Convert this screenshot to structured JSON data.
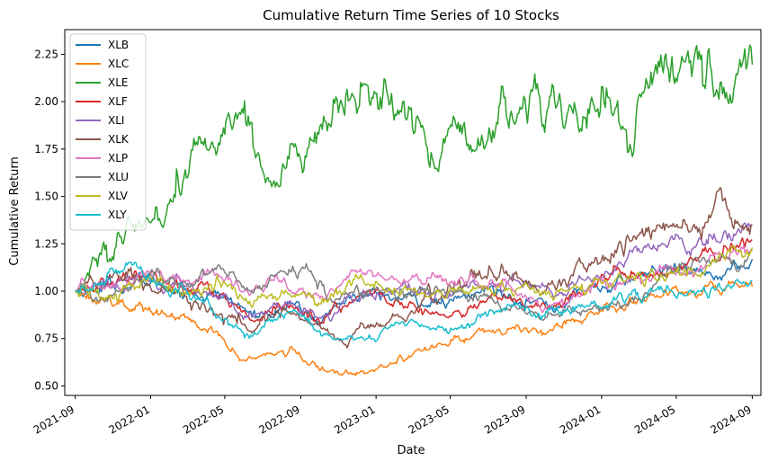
{
  "chart_data": {
    "type": "line",
    "title": "Cumulative Return Time Series of 10 Stocks",
    "xlabel": "Date",
    "ylabel": "Cumulative Return",
    "x_ticks": [
      "2021-09",
      "2022-01",
      "2022-05",
      "2022-09",
      "2023-01",
      "2023-05",
      "2023-09",
      "2024-01",
      "2024-05",
      "2024-09"
    ],
    "y_ticks": [
      "0.50",
      "0.75",
      "1.00",
      "1.25",
      "1.50",
      "1.75",
      "2.00",
      "2.25"
    ],
    "xlim": [
      "2021-08-15",
      "2024-09-15"
    ],
    "ylim": [
      0.45,
      2.38
    ],
    "grid": false,
    "legend_position": "upper-left",
    "series": [
      {
        "name": "XLB",
        "color": "#1f77b4",
        "x": [
          "2021-09-01",
          "2021-11-01",
          "2022-01-01",
          "2022-03-01",
          "2022-05-01",
          "2022-06-15",
          "2022-08-15",
          "2022-10-01",
          "2022-11-15",
          "2023-01-01",
          "2023-03-01",
          "2023-05-01",
          "2023-07-01",
          "2023-09-01",
          "2023-10-15",
          "2023-12-01",
          "2024-02-01",
          "2024-04-01",
          "2024-06-01",
          "2024-08-01",
          "2024-09-01"
        ],
        "values": [
          1.0,
          1.03,
          1.05,
          1.0,
          0.97,
          0.87,
          0.93,
          0.84,
          0.97,
          0.98,
          0.95,
          0.93,
          1.01,
          0.97,
          0.91,
          1.0,
          1.04,
          1.12,
          1.08,
          1.1,
          1.17
        ]
      },
      {
        "name": "XLC",
        "color": "#ff7f0e",
        "x": [
          "2021-09-01",
          "2021-11-01",
          "2022-01-01",
          "2022-03-01",
          "2022-04-15",
          "2022-06-01",
          "2022-08-15",
          "2022-10-01",
          "2022-11-01",
          "2023-01-01",
          "2023-03-01",
          "2023-05-01",
          "2023-07-01",
          "2023-09-01",
          "2023-11-01",
          "2024-01-01",
          "2024-03-01",
          "2024-05-01",
          "2024-07-01",
          "2024-09-01"
        ],
        "values": [
          1.0,
          0.95,
          0.9,
          0.84,
          0.77,
          0.64,
          0.68,
          0.59,
          0.56,
          0.6,
          0.67,
          0.73,
          0.8,
          0.79,
          0.83,
          0.9,
          0.97,
          0.98,
          1.04,
          1.03
        ]
      },
      {
        "name": "XLE",
        "color": "#2ca02c",
        "x": [
          "2021-09-01",
          "2021-10-15",
          "2021-12-01",
          "2022-01-01",
          "2022-02-15",
          "2022-03-15",
          "2022-04-15",
          "2022-06-01",
          "2022-07-15",
          "2022-08-15",
          "2022-10-01",
          "2022-11-15",
          "2023-01-01",
          "2023-02-01",
          "2023-03-15",
          "2023-05-01",
          "2023-07-01",
          "2023-09-15",
          "2023-11-01",
          "2024-01-01",
          "2024-02-15",
          "2024-04-01",
          "2024-04-15",
          "2024-06-01",
          "2024-08-01",
          "2024-09-01"
        ],
        "values": [
          1.0,
          1.2,
          1.24,
          1.4,
          1.5,
          1.7,
          1.8,
          2.0,
          1.55,
          1.7,
          1.8,
          1.95,
          2.05,
          1.95,
          1.85,
          1.75,
          1.8,
          2.05,
          1.95,
          1.95,
          1.9,
          2.1,
          2.28,
          2.15,
          2.1,
          2.15
        ]
      },
      {
        "name": "XLF",
        "color": "#d62728",
        "x": [
          "2021-09-01",
          "2021-11-01",
          "2022-01-01",
          "2022-03-01",
          "2022-05-01",
          "2022-06-15",
          "2022-08-15",
          "2022-10-01",
          "2022-12-01",
          "2023-01-15",
          "2023-03-15",
          "2023-05-01",
          "2023-07-01",
          "2023-09-01",
          "2023-10-15",
          "2024-01-01",
          "2024-03-01",
          "2024-05-01",
          "2024-07-01",
          "2024-09-01"
        ],
        "values": [
          1.0,
          1.05,
          1.07,
          1.02,
          0.95,
          0.84,
          0.92,
          0.87,
          0.95,
          0.97,
          0.9,
          0.86,
          0.94,
          0.95,
          0.92,
          1.05,
          1.1,
          1.12,
          1.18,
          1.26
        ]
      },
      {
        "name": "XLI",
        "color": "#9467bd",
        "x": [
          "2021-09-01",
          "2021-11-01",
          "2022-01-01",
          "2022-03-01",
          "2022-05-01",
          "2022-06-15",
          "2022-08-15",
          "2022-10-01",
          "2022-12-01",
          "2023-02-01",
          "2023-04-01",
          "2023-06-01",
          "2023-08-01",
          "2023-10-15",
          "2024-01-01",
          "2024-03-01",
          "2024-05-01",
          "2024-07-01",
          "2024-09-01"
        ],
        "values": [
          1.0,
          1.05,
          1.06,
          1.02,
          0.96,
          0.86,
          0.94,
          0.85,
          0.98,
          1.0,
          0.97,
          1.02,
          1.07,
          0.98,
          1.1,
          1.2,
          1.25,
          1.27,
          1.32
        ]
      },
      {
        "name": "XLK",
        "color": "#8c564b",
        "x": [
          "2021-09-01",
          "2021-12-01",
          "2022-01-15",
          "2022-03-15",
          "2022-05-15",
          "2022-06-15",
          "2022-08-15",
          "2022-10-15",
          "2022-12-15",
          "2023-02-01",
          "2023-04-01",
          "2023-06-01",
          "2023-07-15",
          "2023-09-01",
          "2023-10-15",
          "2023-12-01",
          "2024-02-01",
          "2024-04-01",
          "2024-05-15",
          "2024-07-10",
          "2024-08-05",
          "2024-09-01"
        ],
        "values": [
          1.0,
          1.08,
          1.04,
          0.97,
          0.86,
          0.8,
          0.9,
          0.76,
          0.78,
          0.85,
          0.97,
          1.05,
          1.12,
          1.05,
          1.0,
          1.1,
          1.25,
          1.35,
          1.3,
          1.52,
          1.35,
          1.4
        ]
      },
      {
        "name": "XLP",
        "color": "#e377c2",
        "x": [
          "2021-09-01",
          "2021-11-01",
          "2022-01-01",
          "2022-03-01",
          "2022-04-15",
          "2022-06-15",
          "2022-08-15",
          "2022-10-01",
          "2022-12-01",
          "2023-02-01",
          "2023-04-01",
          "2023-06-01",
          "2023-08-01",
          "2023-10-15",
          "2023-12-01",
          "2024-02-01",
          "2024-04-01",
          "2024-06-01",
          "2024-08-01",
          "2024-09-01"
        ],
        "values": [
          1.0,
          1.02,
          1.08,
          1.04,
          1.1,
          1.03,
          1.08,
          0.95,
          1.08,
          1.04,
          1.08,
          1.05,
          1.02,
          0.92,
          1.0,
          1.05,
          1.1,
          1.12,
          1.18,
          1.23
        ]
      },
      {
        "name": "XLU",
        "color": "#7f7f7f",
        "x": [
          "2021-09-01",
          "2021-11-01",
          "2022-01-01",
          "2022-03-01",
          "2022-04-15",
          "2022-06-15",
          "2022-08-15",
          "2022-09-10",
          "2022-10-15",
          "2022-12-01",
          "2023-02-01",
          "2023-04-01",
          "2023-06-01",
          "2023-08-01",
          "2023-10-01",
          "2023-12-01",
          "2024-02-01",
          "2024-04-01",
          "2024-06-01",
          "2024-08-01",
          "2024-09-01"
        ],
        "values": [
          1.0,
          0.98,
          1.06,
          1.02,
          1.13,
          1.0,
          1.12,
          1.15,
          0.92,
          1.02,
          0.98,
          1.0,
          0.97,
          0.92,
          0.85,
          0.92,
          0.93,
          1.05,
          1.15,
          1.15,
          1.2
        ]
      },
      {
        "name": "XLV",
        "color": "#bcbd22",
        "x": [
          "2021-09-01",
          "2021-11-01",
          "2022-01-01",
          "2022-03-01",
          "2022-05-01",
          "2022-06-15",
          "2022-08-15",
          "2022-10-01",
          "2022-12-01",
          "2023-02-01",
          "2023-04-01",
          "2023-06-01",
          "2023-08-01",
          "2023-10-15",
          "2023-12-01",
          "2024-02-01",
          "2024-04-01",
          "2024-06-01",
          "2024-08-01",
          "2024-09-01"
        ],
        "values": [
          1.0,
          0.96,
          1.03,
          0.99,
          1.03,
          0.96,
          1.0,
          0.95,
          1.06,
          1.02,
          1.0,
          0.99,
          1.04,
          0.98,
          1.03,
          1.08,
          1.1,
          1.1,
          1.18,
          1.21
        ]
      },
      {
        "name": "XLY",
        "color": "#17becf",
        "x": [
          "2021-09-01",
          "2021-11-01",
          "2021-12-01",
          "2022-01-15",
          "2022-03-01",
          "2022-04-15",
          "2022-05-15",
          "2022-06-15",
          "2022-08-15",
          "2022-10-01",
          "2022-11-15",
          "2023-01-01",
          "2023-02-15",
          "2023-04-01",
          "2023-06-01",
          "2023-08-01",
          "2023-10-15",
          "2023-12-01",
          "2024-02-01",
          "2024-04-01",
          "2024-06-01",
          "2024-08-01",
          "2024-09-01"
        ],
        "values": [
          1.0,
          1.1,
          1.15,
          1.05,
          0.98,
          0.9,
          0.82,
          0.75,
          0.9,
          0.8,
          0.74,
          0.75,
          0.85,
          0.8,
          0.82,
          0.9,
          0.87,
          0.92,
          0.97,
          1.0,
          0.99,
          1.04,
          1.04
        ]
      }
    ]
  }
}
